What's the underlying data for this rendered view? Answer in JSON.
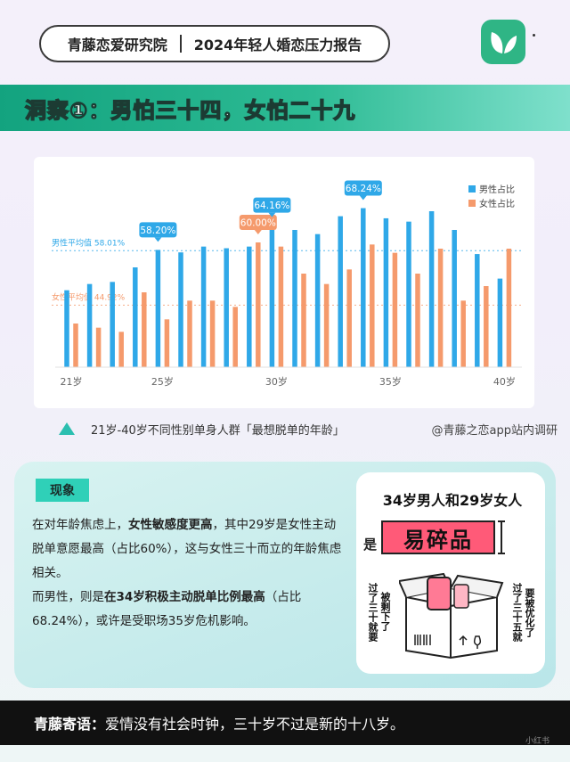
{
  "header": {
    "org": "青藤恋爱研究院",
    "report": "2024年轻人婚恋压力报告"
  },
  "banner": {
    "title": "洞察①：男怕三十四，女怕二十九"
  },
  "chart_data": {
    "type": "bar",
    "categories": [
      "21岁",
      "22岁",
      "23岁",
      "24岁",
      "25岁",
      "26岁",
      "27岁",
      "28岁",
      "29岁",
      "30岁",
      "31岁",
      "32岁",
      "33岁",
      "34岁",
      "35岁",
      "36岁",
      "37岁",
      "38岁",
      "39岁",
      "40岁"
    ],
    "x_tick_labels": [
      "21岁",
      "25岁",
      "30岁",
      "35岁",
      "40岁"
    ],
    "series": [
      {
        "name": "男性占比",
        "color": "#2fa8e8",
        "values": [
          48.5,
          50.0,
          50.5,
          54.0,
          58.2,
          57.6,
          59.0,
          58.6,
          59.0,
          64.16,
          63.0,
          62.0,
          66.3,
          68.24,
          65.8,
          65.0,
          67.5,
          63.0,
          57.2,
          51.3
        ]
      },
      {
        "name": "女性占比",
        "color": "#f59a6c",
        "values": [
          40.5,
          39.5,
          38.5,
          48.0,
          41.5,
          46.0,
          46.0,
          44.5,
          60.0,
          59.0,
          52.5,
          50.0,
          53.5,
          59.5,
          57.5,
          52.5,
          58.5,
          46.0,
          49.5,
          58.5
        ]
      }
    ],
    "callouts": [
      {
        "label": "58.20%",
        "series": "男性占比",
        "category": "25岁"
      },
      {
        "label": "60.00%",
        "series": "女性占比",
        "category": "29岁"
      },
      {
        "label": "64.16%",
        "series": "男性占比",
        "category": "30岁"
      },
      {
        "label": "68.24%",
        "series": "男性占比",
        "category": "34岁"
      }
    ],
    "reference_lines": [
      {
        "label": "男性平均值 58.01%",
        "value": 58.01,
        "color": "#2fa8e8"
      },
      {
        "label": "女性平均值 44.92%",
        "value": 44.92,
        "color": "#f59a6c"
      }
    ],
    "ylim": [
      30,
      72
    ],
    "legend_position": "top-right",
    "grid": false
  },
  "caption": {
    "text": "21岁-40岁不同性别单身人群「最想脱单的年龄」",
    "source": "@青藤之恋app站内调研"
  },
  "observation": {
    "tag": "现象",
    "p1_a": "在对年龄焦虑上，",
    "p1_b": "女性敏感度更高",
    "p1_c": "，其中29岁是女性主动脱单意愿最高（占比60%），这与女性三十而立的年龄焦虑相关。",
    "p2_a": "而男性，则是",
    "p2_b": "在34岁积极主动脱单比例最高",
    "p2_c": "（占比68.24%），或许是受职场35岁危机影响。"
  },
  "illustration": {
    "title": "34岁男人和29岁女人",
    "is": "是",
    "fragile": "易碎品",
    "left_a": "过了三十就要",
    "left_b": "被剩下了",
    "right_a": "过了三十五就",
    "right_b": "要被优化了",
    "colors": {
      "fragile_bg": "#ff5a78"
    }
  },
  "footer": {
    "label": "青藤寄语：",
    "text": "爱情没有社会时钟，三十岁不过是新的十八岁。"
  },
  "watermark": "小红书"
}
